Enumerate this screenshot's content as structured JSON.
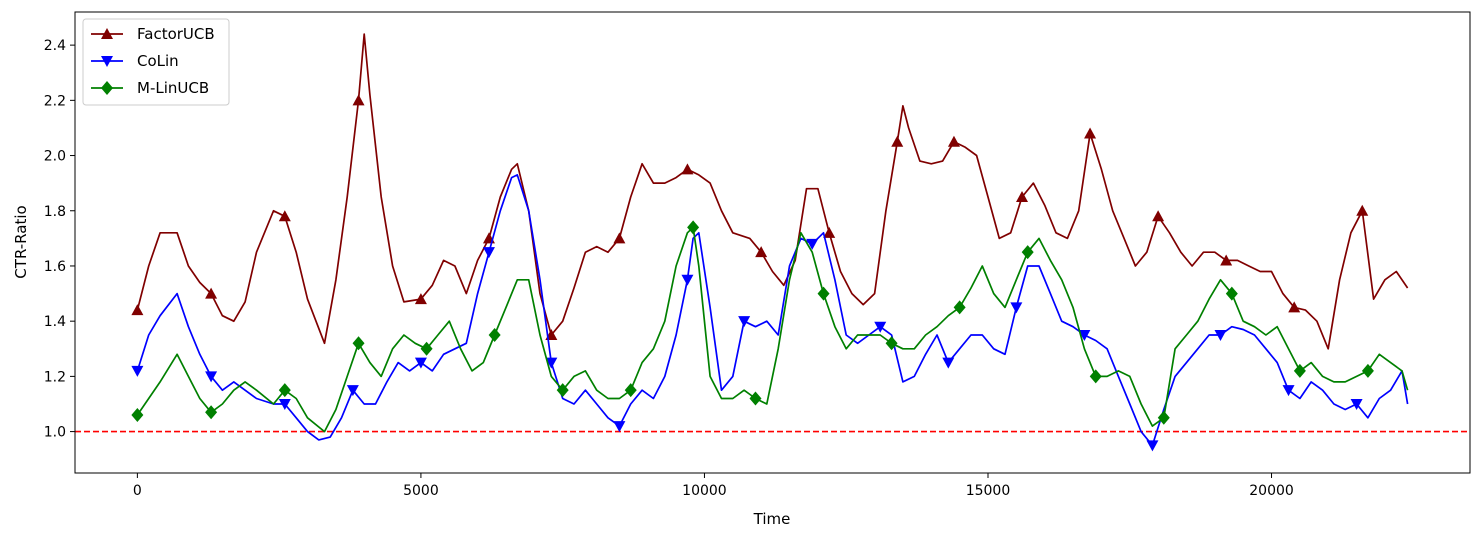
{
  "chart_data": {
    "type": "line",
    "title": "",
    "xlabel": "Time",
    "ylabel": "CTR-Ratio",
    "xlim": [
      -1100,
      23500
    ],
    "ylim": [
      0.85,
      2.52
    ],
    "xticks": [
      0,
      5000,
      10000,
      15000,
      20000
    ],
    "yticks": [
      1.0,
      1.2,
      1.4,
      1.6,
      1.8,
      2.0,
      2.2,
      2.4
    ],
    "xtick_labels": [
      "0",
      "5000",
      "10000",
      "15000",
      "20000"
    ],
    "ytick_labels": [
      "1.0",
      "1.2",
      "1.4",
      "1.6",
      "1.8",
      "2.0",
      "2.2",
      "2.4"
    ],
    "legend_position": "upper-left",
    "grid": false,
    "reference_line": {
      "y": 1.0,
      "color": "#ff0000",
      "style": "dashed"
    },
    "series": [
      {
        "name": "FactorUCB",
        "color": "#800000",
        "marker": "triangle-up",
        "x": [
          0,
          200,
          400,
          700,
          900,
          1100,
          1300,
          1500,
          1700,
          1900,
          2100,
          2400,
          2600,
          2800,
          3000,
          3300,
          3500,
          3700,
          3900,
          4000,
          4100,
          4300,
          4500,
          4700,
          5000,
          5200,
          5400,
          5600,
          5800,
          6000,
          6200,
          6400,
          6600,
          6700,
          6900,
          7100,
          7300,
          7500,
          7700,
          7900,
          8100,
          8300,
          8500,
          8700,
          8900,
          9100,
          9300,
          9500,
          9700,
          9900,
          10100,
          10300,
          10500,
          10800,
          11000,
          11200,
          11400,
          11600,
          11800,
          12000,
          12200,
          12400,
          12600,
          12800,
          13000,
          13200,
          13400,
          13500,
          13600,
          13800,
          14000,
          14200,
          14400,
          14600,
          14800,
          15000,
          15200,
          15400,
          15600,
          15800,
          16000,
          16200,
          16400,
          16600,
          16800,
          17000,
          17200,
          17400,
          17600,
          17800,
          18000,
          18200,
          18400,
          18600,
          18800,
          19000,
          19200,
          19400,
          19600,
          19800,
          20000,
          20200,
          20400,
          20600,
          20800,
          21000,
          21200,
          21400,
          21600,
          21800,
          22000,
          22200,
          22400
        ],
        "values": [
          1.44,
          1.6,
          1.72,
          1.72,
          1.6,
          1.54,
          1.5,
          1.42,
          1.4,
          1.47,
          1.65,
          1.8,
          1.78,
          1.65,
          1.48,
          1.32,
          1.55,
          1.85,
          2.2,
          2.44,
          2.22,
          1.85,
          1.6,
          1.47,
          1.48,
          1.53,
          1.62,
          1.6,
          1.5,
          1.62,
          1.7,
          1.85,
          1.95,
          1.97,
          1.8,
          1.5,
          1.35,
          1.4,
          1.52,
          1.65,
          1.67,
          1.65,
          1.7,
          1.85,
          1.97,
          1.9,
          1.9,
          1.92,
          1.95,
          1.93,
          1.9,
          1.8,
          1.72,
          1.7,
          1.65,
          1.58,
          1.53,
          1.62,
          1.88,
          1.88,
          1.72,
          1.58,
          1.5,
          1.46,
          1.5,
          1.8,
          2.05,
          2.18,
          2.1,
          1.98,
          1.97,
          1.98,
          2.05,
          2.03,
          2.0,
          1.85,
          1.7,
          1.72,
          1.85,
          1.9,
          1.82,
          1.72,
          1.7,
          1.8,
          2.08,
          1.95,
          1.8,
          1.7,
          1.6,
          1.65,
          1.78,
          1.72,
          1.65,
          1.6,
          1.65,
          1.65,
          1.62,
          1.62,
          1.6,
          1.58,
          1.58,
          1.5,
          1.45,
          1.44,
          1.4,
          1.3,
          1.55,
          1.72,
          1.8,
          1.48,
          1.55,
          1.58,
          1.52
        ]
      },
      {
        "name": "CoLin",
        "color": "#0000ff",
        "marker": "triangle-down",
        "x": [
          0,
          200,
          400,
          700,
          900,
          1100,
          1300,
          1500,
          1700,
          1900,
          2100,
          2400,
          2600,
          2800,
          3000,
          3200,
          3400,
          3600,
          3800,
          4000,
          4200,
          4400,
          4600,
          4800,
          5000,
          5200,
          5400,
          5600,
          5800,
          6000,
          6200,
          6400,
          6600,
          6700,
          6900,
          7100,
          7300,
          7500,
          7700,
          7900,
          8100,
          8300,
          8500,
          8700,
          8900,
          9100,
          9300,
          9500,
          9700,
          9800,
          9900,
          10100,
          10300,
          10500,
          10700,
          10900,
          11100,
          11300,
          11500,
          11700,
          11900,
          12100,
          12300,
          12500,
          12700,
          12900,
          13100,
          13300,
          13500,
          13700,
          13900,
          14100,
          14300,
          14500,
          14700,
          14900,
          15100,
          15300,
          15500,
          15700,
          15900,
          16100,
          16300,
          16500,
          16700,
          16900,
          17100,
          17300,
          17500,
          17700,
          17900,
          18100,
          18300,
          18500,
          18700,
          18900,
          19100,
          19300,
          19500,
          19700,
          19900,
          20100,
          20300,
          20500,
          20700,
          20900,
          21100,
          21300,
          21500,
          21700,
          21900,
          22100,
          22300,
          22400
        ],
        "values": [
          1.22,
          1.35,
          1.42,
          1.5,
          1.38,
          1.28,
          1.2,
          1.15,
          1.18,
          1.15,
          1.12,
          1.1,
          1.1,
          1.05,
          1.0,
          0.97,
          0.98,
          1.05,
          1.15,
          1.1,
          1.1,
          1.18,
          1.25,
          1.22,
          1.25,
          1.22,
          1.28,
          1.3,
          1.32,
          1.5,
          1.65,
          1.8,
          1.92,
          1.93,
          1.8,
          1.55,
          1.25,
          1.12,
          1.1,
          1.15,
          1.1,
          1.05,
          1.02,
          1.1,
          1.15,
          1.12,
          1.2,
          1.35,
          1.55,
          1.7,
          1.72,
          1.45,
          1.15,
          1.2,
          1.4,
          1.38,
          1.4,
          1.35,
          1.6,
          1.7,
          1.68,
          1.72,
          1.55,
          1.35,
          1.32,
          1.35,
          1.38,
          1.35,
          1.18,
          1.2,
          1.28,
          1.35,
          1.25,
          1.3,
          1.35,
          1.35,
          1.3,
          1.28,
          1.45,
          1.6,
          1.6,
          1.5,
          1.4,
          1.38,
          1.35,
          1.33,
          1.3,
          1.2,
          1.1,
          1.0,
          0.95,
          1.08,
          1.2,
          1.25,
          1.3,
          1.35,
          1.35,
          1.38,
          1.37,
          1.35,
          1.3,
          1.25,
          1.15,
          1.12,
          1.18,
          1.15,
          1.1,
          1.08,
          1.1,
          1.05,
          1.12,
          1.15,
          1.22,
          1.1
        ]
      },
      {
        "name": "M-LinUCB",
        "color": "#008000",
        "marker": "diamond",
        "x": [
          0,
          200,
          400,
          700,
          900,
          1100,
          1300,
          1500,
          1700,
          1900,
          2100,
          2400,
          2600,
          2800,
          3000,
          3300,
          3500,
          3700,
          3900,
          4100,
          4300,
          4500,
          4700,
          4900,
          5100,
          5300,
          5500,
          5700,
          5900,
          6100,
          6300,
          6500,
          6700,
          6900,
          7100,
          7300,
          7500,
          7700,
          7900,
          8100,
          8300,
          8500,
          8700,
          8900,
          9100,
          9300,
          9500,
          9700,
          9800,
          9900,
          10100,
          10300,
          10500,
          10700,
          10900,
          11100,
          11300,
          11500,
          11700,
          11900,
          12100,
          12300,
          12500,
          12700,
          12900,
          13100,
          13300,
          13500,
          13700,
          13900,
          14100,
          14300,
          14500,
          14700,
          14900,
          15100,
          15300,
          15500,
          15700,
          15900,
          16100,
          16300,
          16500,
          16700,
          16900,
          17100,
          17300,
          17500,
          17700,
          17900,
          18100,
          18300,
          18500,
          18700,
          18900,
          19100,
          19300,
          19500,
          19700,
          19900,
          20100,
          20300,
          20500,
          20700,
          20900,
          21100,
          21300,
          21500,
          21700,
          21900,
          22100,
          22300,
          22400
        ],
        "values": [
          1.06,
          1.12,
          1.18,
          1.28,
          1.2,
          1.12,
          1.07,
          1.1,
          1.15,
          1.18,
          1.15,
          1.1,
          1.15,
          1.12,
          1.05,
          1.0,
          1.08,
          1.2,
          1.32,
          1.25,
          1.2,
          1.3,
          1.35,
          1.32,
          1.3,
          1.35,
          1.4,
          1.3,
          1.22,
          1.25,
          1.35,
          1.45,
          1.55,
          1.55,
          1.35,
          1.2,
          1.15,
          1.2,
          1.22,
          1.15,
          1.12,
          1.12,
          1.15,
          1.25,
          1.3,
          1.4,
          1.6,
          1.72,
          1.74,
          1.6,
          1.2,
          1.12,
          1.12,
          1.15,
          1.12,
          1.1,
          1.3,
          1.55,
          1.72,
          1.65,
          1.5,
          1.38,
          1.3,
          1.35,
          1.35,
          1.35,
          1.32,
          1.3,
          1.3,
          1.35,
          1.38,
          1.42,
          1.45,
          1.52,
          1.6,
          1.5,
          1.45,
          1.55,
          1.65,
          1.7,
          1.62,
          1.55,
          1.45,
          1.3,
          1.2,
          1.2,
          1.22,
          1.2,
          1.1,
          1.02,
          1.05,
          1.3,
          1.35,
          1.4,
          1.48,
          1.55,
          1.5,
          1.4,
          1.38,
          1.35,
          1.38,
          1.3,
          1.22,
          1.25,
          1.2,
          1.18,
          1.18,
          1.2,
          1.22,
          1.28,
          1.25,
          1.22,
          1.15
        ]
      }
    ]
  }
}
